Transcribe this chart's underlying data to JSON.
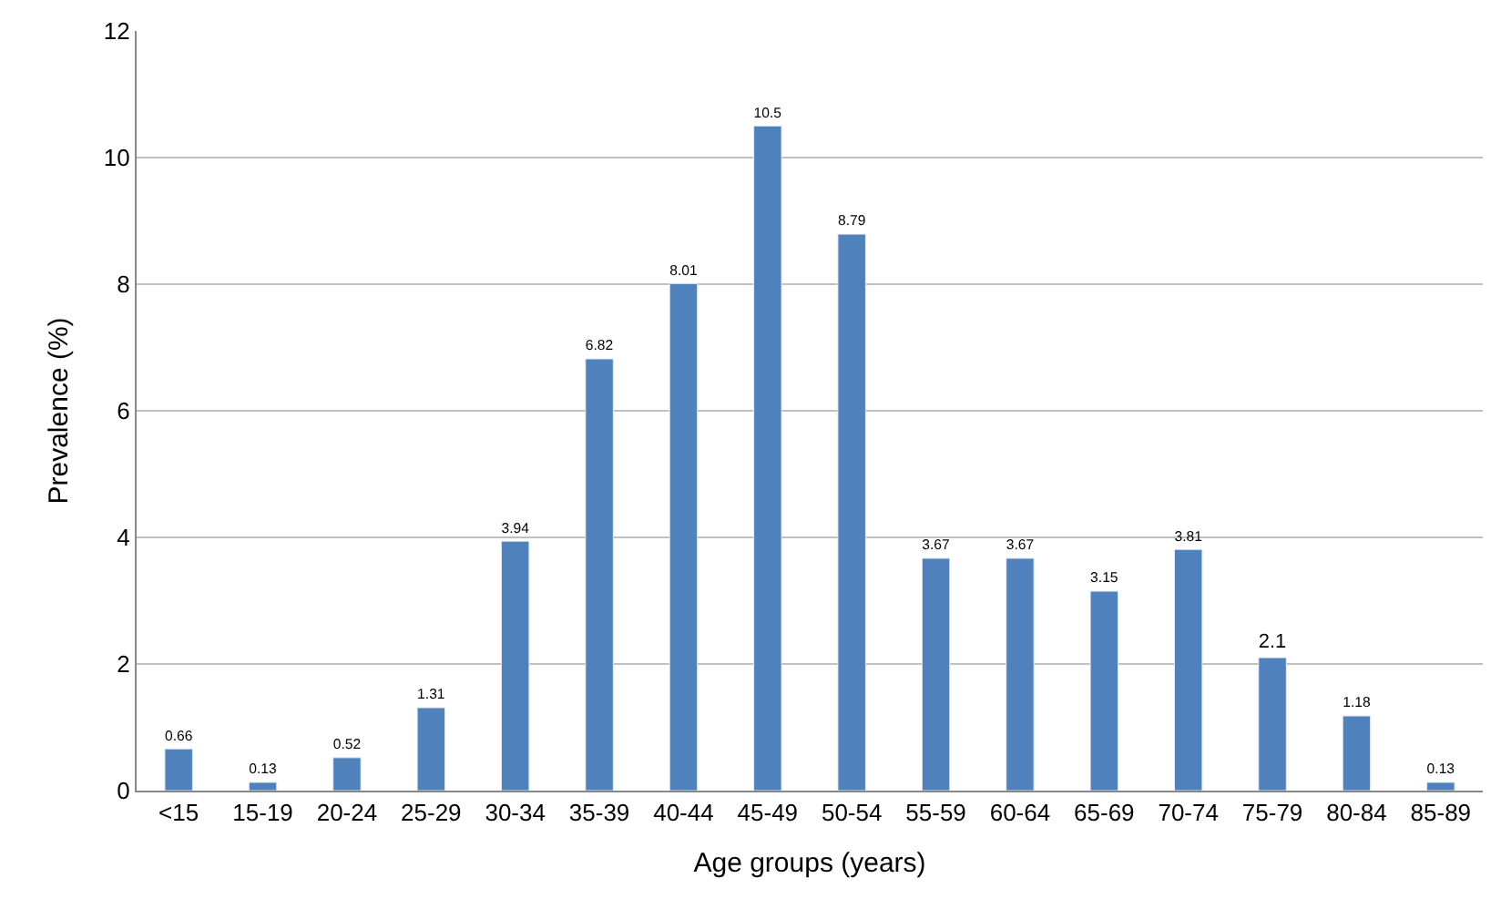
{
  "chart_data": {
    "type": "bar",
    "xlabel": "Age groups (years)",
    "ylabel": "Prevalence (%)",
    "categories": [
      "<15",
      "15-19",
      "20-24",
      "25-29",
      "30-34",
      "35-39",
      "40-44",
      "45-49",
      "50-54",
      "55-59",
      "60-64",
      "65-69",
      "70-74",
      "75-79",
      "80-84",
      "85-89"
    ],
    "values": [
      0.66,
      0.13,
      0.52,
      1.31,
      3.94,
      6.82,
      8.01,
      10.5,
      8.79,
      3.67,
      3.67,
      3.15,
      3.81,
      2.1,
      1.18,
      0.13
    ],
    "color": "#4f81bd",
    "ylim": [
      0,
      12
    ],
    "yticks": [
      0,
      2,
      4,
      6,
      8,
      10,
      12
    ],
    "grid": "y",
    "data_labels": true,
    "legend": false
  }
}
